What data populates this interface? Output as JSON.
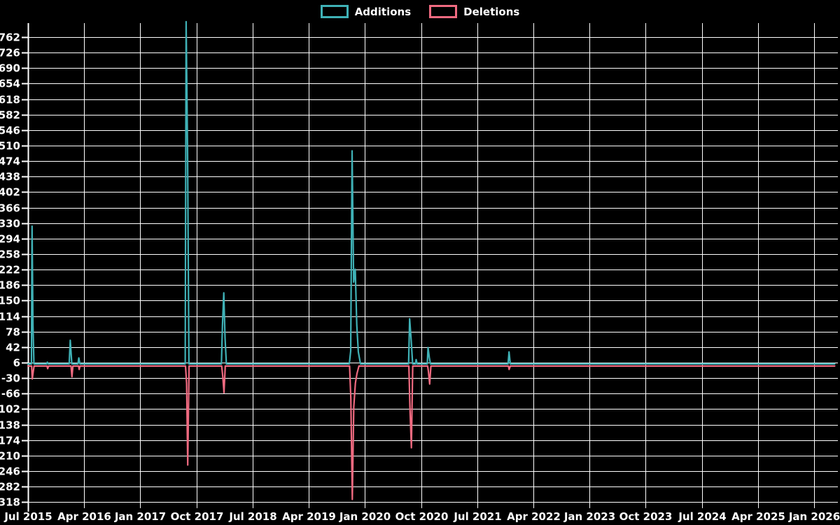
{
  "page": {
    "background_color": "#000000",
    "text_color": "#ffffff",
    "grid_color": "#ffffff"
  },
  "legend": {
    "items": [
      {
        "label": "Additions",
        "color": "#3fb1b6"
      },
      {
        "label": "Deletions",
        "color": "#ef6a80"
      }
    ]
  },
  "chart_data": {
    "type": "line",
    "title": "",
    "xlabel": "",
    "ylabel": "",
    "grid": true,
    "legend_position": "top-center",
    "x_axis": {
      "unit": "months since Jul 2015",
      "span_months": 126,
      "tick_labels": [
        "Jul 2015",
        "Apr 2016",
        "Jan 2017",
        "Oct 2017",
        "Jul 2018",
        "Apr 2019",
        "Jan 2020",
        "Oct 2020",
        "Jul 2021",
        "Apr 2022",
        "Jan 2023",
        "Oct 2023",
        "Jul 2024",
        "Apr 2025",
        "Jan 2026"
      ],
      "tick_interval_months": 9
    },
    "y_axis": {
      "min": -318,
      "max": 762,
      "step": 36,
      "ticks": [
        762,
        726,
        690,
        654,
        618,
        582,
        546,
        510,
        474,
        438,
        402,
        366,
        330,
        294,
        258,
        222,
        186,
        150,
        114,
        78,
        42,
        6,
        -30,
        -66,
        -102,
        -138,
        -174,
        -210,
        -246,
        -282,
        -318
      ]
    },
    "series": [
      {
        "name": "Additions",
        "color": "#3fb1b6",
        "baseline": 0,
        "points": [
          [
            0,
            0
          ],
          [
            0.55,
            0
          ],
          [
            0.65,
            320
          ],
          [
            0.8,
            90
          ],
          [
            0.95,
            0
          ],
          [
            3.0,
            0
          ],
          [
            3.1,
            4
          ],
          [
            3.25,
            0
          ],
          [
            6.6,
            0
          ],
          [
            6.78,
            55
          ],
          [
            7.02,
            0
          ],
          [
            8.0,
            0
          ],
          [
            8.15,
            14
          ],
          [
            8.32,
            0
          ],
          [
            25.2,
            0
          ],
          [
            25.35,
            795
          ],
          [
            25.58,
            490
          ],
          [
            25.8,
            0
          ],
          [
            31.0,
            0
          ],
          [
            31.17,
            90
          ],
          [
            31.38,
            165
          ],
          [
            31.58,
            60
          ],
          [
            31.8,
            0
          ],
          [
            51.5,
            0
          ],
          [
            51.72,
            30
          ],
          [
            51.95,
            495
          ],
          [
            52.2,
            190
          ],
          [
            52.45,
            220
          ],
          [
            52.7,
            90
          ],
          [
            52.95,
            28
          ],
          [
            53.3,
            0
          ],
          [
            61.0,
            0
          ],
          [
            61.17,
            105
          ],
          [
            61.42,
            55
          ],
          [
            61.65,
            0
          ],
          [
            62.1,
            0
          ],
          [
            62.22,
            10
          ],
          [
            62.38,
            0
          ],
          [
            64.0,
            0
          ],
          [
            64.12,
            38
          ],
          [
            64.32,
            15
          ],
          [
            64.52,
            0
          ],
          [
            76.95,
            0
          ],
          [
            77.1,
            28
          ],
          [
            77.3,
            0
          ],
          [
            129.3,
            0
          ]
        ]
      },
      {
        "name": "Deletions",
        "color": "#ef6a80",
        "baseline": 0,
        "points": [
          [
            0,
            0
          ],
          [
            0.58,
            0
          ],
          [
            0.68,
            -30
          ],
          [
            0.85,
            -12
          ],
          [
            0.98,
            0
          ],
          [
            3.05,
            0
          ],
          [
            3.15,
            -6
          ],
          [
            3.3,
            0
          ],
          [
            6.9,
            0
          ],
          [
            7.05,
            -25
          ],
          [
            7.2,
            0
          ],
          [
            8.1,
            0
          ],
          [
            8.2,
            -8
          ],
          [
            8.35,
            0
          ],
          [
            25.25,
            0
          ],
          [
            25.42,
            -40
          ],
          [
            25.6,
            -230
          ],
          [
            25.82,
            0
          ],
          [
            31.05,
            0
          ],
          [
            31.22,
            -25
          ],
          [
            31.42,
            -62
          ],
          [
            31.62,
            0
          ],
          [
            51.55,
            0
          ],
          [
            51.75,
            -75
          ],
          [
            51.98,
            -310
          ],
          [
            52.22,
            -95
          ],
          [
            52.48,
            -40
          ],
          [
            52.72,
            -18
          ],
          [
            53.05,
            0
          ],
          [
            61.05,
            0
          ],
          [
            61.22,
            -95
          ],
          [
            61.45,
            -190
          ],
          [
            61.67,
            0
          ],
          [
            64.05,
            0
          ],
          [
            64.18,
            -12
          ],
          [
            64.38,
            -42
          ],
          [
            64.58,
            0
          ],
          [
            77.0,
            0
          ],
          [
            77.12,
            -8
          ],
          [
            77.32,
            0
          ],
          [
            129.3,
            0
          ]
        ]
      }
    ]
  }
}
